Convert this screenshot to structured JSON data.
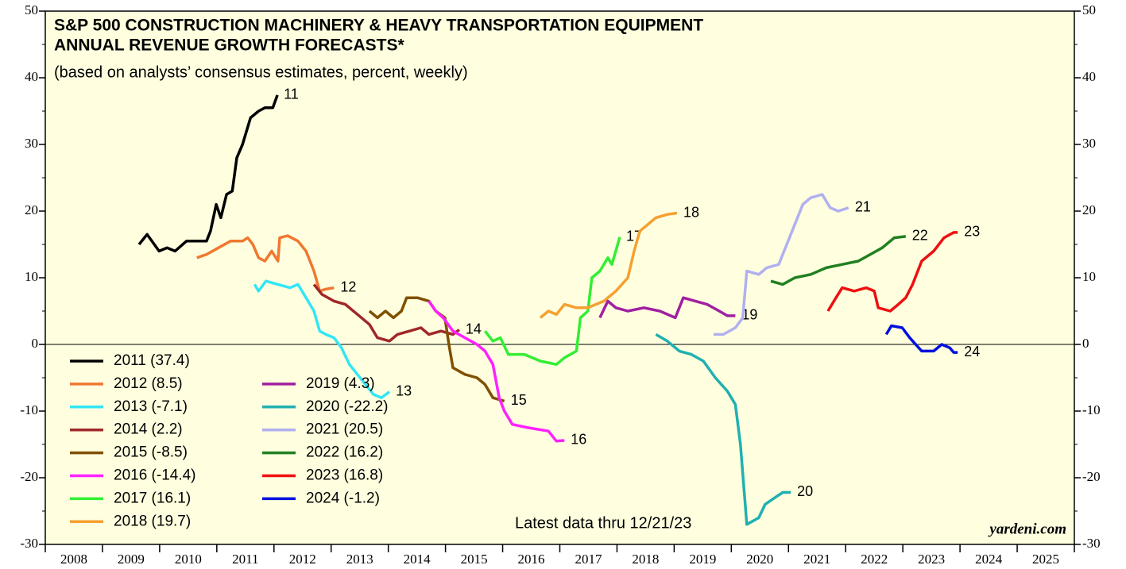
{
  "chart_data": {
    "type": "line",
    "title": [
      "S&P 500 CONSTRUCTION MACHINERY & HEAVY TRANSPORTATION EQUIPMENT",
      "ANNUAL REVENUE GROWTH FORECASTS*"
    ],
    "subtitle": "(based on analysts’ consensus estimates, percent, weekly)",
    "annotation": "Latest data thru  12/21/23",
    "source": "yardeni.com",
    "categories": [
      "2008",
      "2009",
      "2010",
      "2011",
      "2012",
      "2013",
      "2014",
      "2015",
      "2016",
      "2017",
      "2018",
      "2019",
      "2020",
      "2021",
      "2022",
      "2023",
      "2024",
      "2025"
    ],
    "xlim": [
      2008,
      2026
    ],
    "xticks": [
      2008,
      2009,
      2010,
      2011,
      2012,
      2013,
      2014,
      2015,
      2016,
      2017,
      2018,
      2019,
      2020,
      2021,
      2022,
      2023,
      2024,
      2025,
      2026
    ],
    "ylim": [
      -30,
      50
    ],
    "yticks": [
      -30,
      -20,
      -10,
      0,
      10,
      20,
      30,
      40,
      50
    ],
    "zero_line": true,
    "series": [
      {
        "name": "2011 (37.4)",
        "label": "11",
        "color": "#000000",
        "x": [
          2009.64,
          2009.78,
          2009.99,
          2010.13,
          2010.27,
          2010.47,
          2010.82,
          2010.89,
          2010.99,
          2011.07,
          2011.17,
          2011.27,
          2011.35,
          2011.45,
          2011.59,
          2011.73,
          2011.84,
          2011.98,
          2012.06
        ],
        "values": [
          15,
          16.5,
          14,
          14.5,
          14,
          15.5,
          15.5,
          17,
          21,
          19,
          22.5,
          23,
          28,
          30,
          34,
          35,
          35.5,
          35.5,
          37.4
        ]
      },
      {
        "name": "2012 (8.5)",
        "label": "12",
        "color": "#f07830",
        "x": [
          2010.65,
          2010.82,
          2011.03,
          2011.24,
          2011.45,
          2011.54,
          2011.63,
          2011.73,
          2011.84,
          2011.96,
          2012.07,
          2012.1,
          2012.24,
          2012.42,
          2012.56,
          2012.7,
          2012.8,
          2012.91,
          2013.05
        ],
        "values": [
          13,
          13.5,
          14.5,
          15.5,
          15.5,
          16,
          15,
          13,
          12.5,
          14,
          12.5,
          16,
          16.3,
          15.5,
          14,
          11,
          8,
          8.3,
          8.5
        ]
      },
      {
        "name": "2013 (-7.1)",
        "label": "13",
        "color": "#33e6f5",
        "x": [
          2011.66,
          2011.73,
          2011.86,
          2012.07,
          2012.28,
          2012.42,
          2012.56,
          2012.7,
          2012.8,
          2012.91,
          2013.05,
          2013.18,
          2013.32,
          2013.46,
          2013.6,
          2013.74,
          2013.88,
          2014.02
        ],
        "values": [
          9,
          8,
          9.5,
          9,
          8.5,
          9,
          7,
          5,
          2,
          1.5,
          1,
          -0.5,
          -3,
          -4.5,
          -6,
          -7.5,
          -8,
          -7.1
        ]
      },
      {
        "name": "2014 (2.2)",
        "label": "14",
        "color": "#a02828",
        "x": [
          2012.7,
          2012.84,
          2013.05,
          2013.25,
          2013.46,
          2013.67,
          2013.81,
          2014.02,
          2014.16,
          2014.37,
          2014.57,
          2014.71,
          2014.92,
          2015.13,
          2015.24
        ],
        "values": [
          9,
          7.5,
          6.5,
          6,
          4.5,
          3,
          1,
          0.5,
          1.5,
          2,
          2.5,
          1.5,
          2,
          1.5,
          2.2
        ]
      },
      {
        "name": "2015 (-8.5)",
        "label": "15",
        "color": "#805000",
        "x": [
          2013.67,
          2013.81,
          2013.95,
          2014.09,
          2014.23,
          2014.32,
          2014.51,
          2014.71,
          2014.83,
          2014.99,
          2015.06,
          2015.13,
          2015.34,
          2015.55,
          2015.69,
          2015.83,
          2016.03
        ],
        "values": [
          5,
          4,
          5,
          4,
          5,
          7,
          7,
          6.5,
          5,
          4,
          0,
          -3.5,
          -4.5,
          -5,
          -6,
          -8,
          -8.5
        ]
      },
      {
        "name": "2016 (-14.4)",
        "label": "16",
        "color": "#ff20ff",
        "x": [
          2014.71,
          2014.83,
          2014.96,
          2015.13,
          2015.34,
          2015.55,
          2015.69,
          2015.83,
          2015.94,
          2016.03,
          2016.17,
          2016.45,
          2016.8,
          2016.94,
          2017.08
        ],
        "values": [
          6.5,
          5,
          4,
          2,
          1,
          0,
          -1,
          -3,
          -8,
          -10,
          -12,
          -12.5,
          -13,
          -14.5,
          -14.4
        ]
      },
      {
        "name": "2017 (16.1)",
        "label": "17",
        "color": "#33ee33",
        "x": [
          2015.69,
          2015.83,
          2015.96,
          2016.1,
          2016.38,
          2016.66,
          2016.94,
          2017.08,
          2017.29,
          2017.36,
          2017.49,
          2017.56,
          2017.7,
          2017.84,
          2017.91,
          2018.05
        ],
        "values": [
          2,
          0.5,
          1,
          -1.5,
          -1.5,
          -2.5,
          -3,
          -2,
          -1,
          4,
          5,
          10,
          11,
          13,
          12,
          16.1
        ]
      },
      {
        "name": "2018 (19.7)",
        "label": "18",
        "color": "#f5a030",
        "x": [
          2016.66,
          2016.8,
          2016.94,
          2017.08,
          2017.29,
          2017.49,
          2017.77,
          2017.98,
          2018.19,
          2018.3,
          2018.4,
          2018.54,
          2018.68,
          2018.88,
          2019.05
        ],
        "values": [
          4,
          5,
          4.5,
          6,
          5.5,
          5.5,
          6.5,
          8,
          10,
          14,
          17,
          18,
          19,
          19.5,
          19.7
        ]
      },
      {
        "name": "2019 (4.3)",
        "label": "19",
        "color": "#a020a0",
        "x": [
          2017.7,
          2017.84,
          2017.98,
          2018.19,
          2018.47,
          2018.75,
          2019.02,
          2019.16,
          2019.37,
          2019.58,
          2019.79,
          2019.93,
          2020.07
        ],
        "values": [
          4,
          6.5,
          5.5,
          5,
          5.5,
          5,
          4,
          7,
          6.5,
          6,
          5,
          4.3,
          4.3
        ]
      },
      {
        "name": "2020 (-22.2)",
        "label": "20",
        "color": "#20b0b0",
        "x": [
          2018.68,
          2018.88,
          2019.09,
          2019.3,
          2019.51,
          2019.72,
          2019.93,
          2020.07,
          2020.16,
          2020.27,
          2020.48,
          2020.59,
          2020.76,
          2020.9,
          2021.04
        ],
        "values": [
          1.5,
          0.5,
          -1,
          -1.5,
          -2.5,
          -5,
          -7,
          -9,
          -15,
          -27,
          -26,
          -24,
          -23,
          -22.2,
          -22.2
        ]
      },
      {
        "name": "2021 (20.5)",
        "label": "21",
        "color": "#b0b0f0",
        "x": [
          2019.69,
          2019.86,
          2020.07,
          2020.2,
          2020.27,
          2020.48,
          2020.62,
          2020.83,
          2020.97,
          2021.11,
          2021.25,
          2021.39,
          2021.59,
          2021.73,
          2021.87,
          2022.05
        ],
        "values": [
          1.5,
          1.5,
          2.5,
          4,
          11,
          10.5,
          11.5,
          12,
          15,
          18,
          21,
          22,
          22.5,
          20.5,
          20,
          20.5
        ]
      },
      {
        "name": "2022 (16.2)",
        "label": "22",
        "color": "#208020",
        "x": [
          2020.69,
          2020.9,
          2021.11,
          2021.39,
          2021.66,
          2021.94,
          2022.22,
          2022.43,
          2022.64,
          2022.85,
          2023.05
        ],
        "values": [
          9.5,
          9,
          10,
          10.5,
          11.5,
          12,
          12.5,
          13.5,
          14.5,
          16,
          16.2
        ]
      },
      {
        "name": "2023 (16.8)",
        "label": "23",
        "color": "#ee1010",
        "x": [
          2021.69,
          2021.83,
          2021.94,
          2022.15,
          2022.36,
          2022.5,
          2022.57,
          2022.78,
          2022.92,
          2023.05,
          2023.17,
          2023.33,
          2023.54,
          2023.72,
          2023.89,
          2023.96
        ],
        "values": [
          5,
          7,
          8.5,
          8,
          8.5,
          8,
          5.5,
          5,
          6,
          7,
          9,
          12.5,
          14,
          16,
          16.8,
          16.8
        ]
      },
      {
        "name": "2024 (-1.2)",
        "label": "24",
        "color": "#0010dd",
        "x": [
          2022.71,
          2022.8,
          2022.99,
          2023.12,
          2023.33,
          2023.54,
          2023.68,
          2023.82,
          2023.89,
          2023.96
        ],
        "values": [
          1.5,
          2.8,
          2.5,
          1,
          -1,
          -1,
          0,
          -0.5,
          -1.2,
          -1.2
        ]
      }
    ]
  }
}
